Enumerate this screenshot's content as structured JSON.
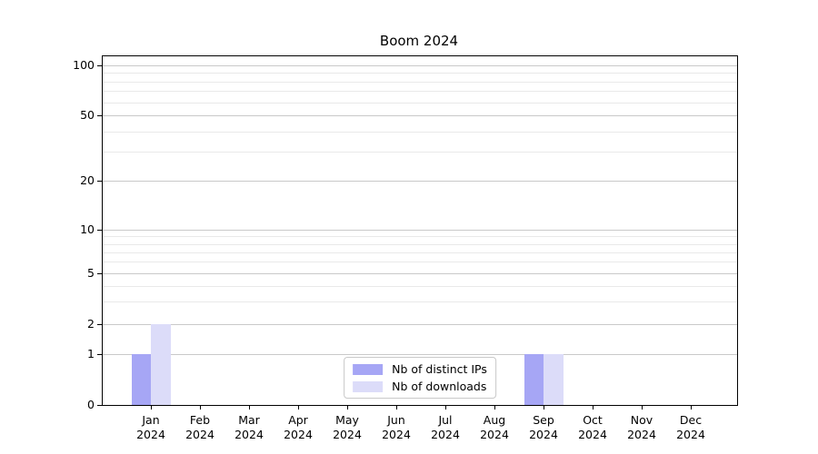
{
  "chart_data": {
    "type": "bar",
    "title": "Boom 2024",
    "categories": [
      "Jan 2024",
      "Feb 2024",
      "Mar 2024",
      "Apr 2024",
      "May 2024",
      "Jun 2024",
      "Jul 2024",
      "Aug 2024",
      "Sep 2024",
      "Oct 2024",
      "Nov 2024",
      "Dec 2024"
    ],
    "series": [
      {
        "name": "Nb of distinct IPs",
        "color": "#a6a6f5",
        "values": [
          1,
          0,
          0,
          0,
          0,
          0,
          0,
          0,
          1,
          0,
          0,
          0
        ]
      },
      {
        "name": "Nb of downloads",
        "color": "#dcdcf9",
        "values": [
          2,
          0,
          0,
          0,
          0,
          0,
          0,
          0,
          1,
          0,
          0,
          0
        ]
      }
    ],
    "yaxis": {
      "scale": "symlog",
      "major_ticks": [
        0,
        1,
        2,
        5,
        10,
        20,
        50,
        100
      ],
      "minor_ticks": [
        3,
        4,
        6,
        7,
        8,
        9,
        30,
        40,
        60,
        70,
        80,
        90
      ],
      "range": [
        0,
        113
      ]
    },
    "xlabel": "",
    "ylabel": "",
    "grid": true,
    "legend": {
      "position": "lower center"
    },
    "colors": {
      "bar_distinct_ips": "#a6a6f5",
      "bar_downloads": "#dcdcf9",
      "major_grid": "#c9c9c9",
      "minor_grid": "#e9e9e9",
      "axis": "#000000"
    }
  }
}
